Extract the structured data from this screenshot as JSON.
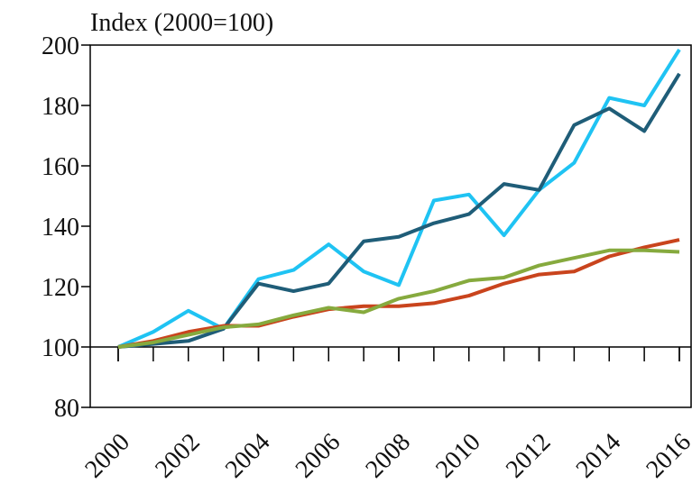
{
  "chart_data": {
    "type": "line",
    "ylabel": "Index (2000=100)",
    "x": [
      2000,
      2001,
      2002,
      2003,
      2004,
      2005,
      2006,
      2007,
      2008,
      2009,
      2010,
      2011,
      2012,
      2013,
      2014,
      2015,
      2016
    ],
    "series": [
      {
        "color": "#1fc3f3",
        "values": [
          100,
          105,
          112,
          106,
          122.5,
          125.5,
          134,
          125,
          120.5,
          148.5,
          150.5,
          137,
          152,
          161,
          182.5,
          180,
          198.5
        ]
      },
      {
        "color": "#1f5d78",
        "values": [
          100,
          101,
          102,
          106,
          121,
          118.5,
          121,
          135,
          136.5,
          141,
          144,
          154,
          152,
          173.5,
          179,
          171.5,
          190.5
        ]
      },
      {
        "color": "#c9441d",
        "values": [
          100,
          102,
          105,
          107,
          107,
          110,
          112.5,
          113.5,
          113.5,
          114.5,
          117,
          121,
          124,
          125,
          130,
          133,
          135.5
        ]
      },
      {
        "color": "#86aa3e",
        "values": [
          100,
          101.5,
          104,
          106.5,
          107.5,
          110.5,
          113,
          111.5,
          116,
          118.5,
          122,
          123,
          127,
          129.5,
          132,
          132,
          131.5
        ]
      }
    ],
    "xlim": [
      2000,
      2016
    ],
    "xticks": [
      2000,
      2002,
      2004,
      2006,
      2008,
      2010,
      2012,
      2014,
      2016
    ],
    "ylim": [
      80,
      200
    ],
    "yticks": [
      80,
      100,
      120,
      140,
      160,
      180,
      200
    ]
  }
}
